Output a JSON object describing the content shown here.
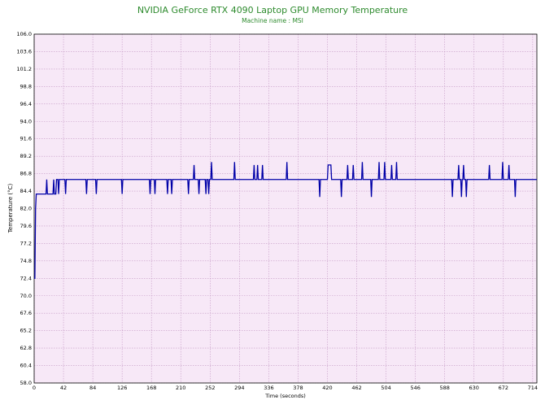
{
  "chart_data": {
    "type": "line",
    "title": "NVIDIA GeForce RTX 4090 Laptop GPU Memory Temperature",
    "subtitle": "Machine name : MSI",
    "x_label": "Time (seconds)",
    "y_label": "Temperature (°C)",
    "xlim": [
      0,
      720
    ],
    "xticks": [
      0,
      42,
      84,
      126,
      168,
      210,
      252,
      294,
      336,
      378,
      420,
      462,
      504,
      546,
      588,
      630,
      672,
      714
    ],
    "ylim": [
      58,
      106
    ],
    "yticks": [
      {
        "value": 58,
        "label": "58.0"
      },
      60.4,
      62.8,
      65.2,
      67.6,
      {
        "value": 70,
        "label": "70.0"
      },
      72.4,
      74.8,
      77.2,
      79.6,
      {
        "value": 82,
        "label": "82.0"
      },
      84.4,
      86.8,
      89.2,
      91.6,
      {
        "value": 94,
        "label": "94.0"
      },
      96.4,
      98.8,
      101.2,
      103.6,
      {
        "value": 106,
        "label": "106.0"
      }
    ],
    "grid": true,
    "series": [
      {
        "color": "#0000a8",
        "x": [
          0,
          1,
          2,
          3,
          4,
          17,
          18,
          19,
          27,
          28,
          29,
          31,
          32,
          34,
          35,
          36,
          44,
          45,
          46,
          74,
          75,
          76,
          88,
          89,
          90,
          125,
          126,
          127,
          165,
          166,
          167,
          172,
          173,
          174,
          190,
          191,
          192,
          196,
          197,
          198,
          220,
          221,
          222,
          228,
          229,
          230,
          235,
          236,
          237,
          245,
          246,
          247,
          249,
          250,
          251,
          253,
          254,
          255,
          286,
          287,
          288,
          314,
          315,
          316,
          319,
          320,
          321,
          326,
          327,
          328,
          361,
          362,
          363,
          408,
          409,
          410,
          420,
          421,
          425,
          426,
          439,
          440,
          441,
          448,
          449,
          450,
          456,
          457,
          458,
          469,
          470,
          471,
          482,
          483,
          484,
          493,
          494,
          495,
          501,
          502,
          503,
          511,
          512,
          513,
          518,
          519,
          520,
          598,
          599,
          600,
          607,
          608,
          609,
          611,
          612,
          613,
          614,
          615,
          616,
          618,
          619,
          620,
          651,
          652,
          653,
          670,
          671,
          672,
          679,
          680,
          681,
          688,
          689,
          690,
          720
        ],
        "values": [
          72.4,
          72.4,
          82,
          84,
          84,
          84,
          86,
          84,
          84,
          86,
          84,
          84,
          86,
          86,
          84,
          86,
          86,
          84,
          86,
          86,
          84,
          86,
          86,
          84,
          86,
          86,
          84,
          86,
          86,
          84,
          86,
          86,
          84,
          86,
          86,
          84,
          86,
          86,
          84,
          86,
          86,
          84,
          86,
          86,
          88,
          86,
          86,
          84,
          86,
          86,
          84,
          86,
          86,
          84,
          86,
          86,
          88.4,
          86,
          86,
          88.4,
          86,
          86,
          88,
          86,
          86,
          88,
          86,
          86,
          88,
          86,
          86,
          88.4,
          86,
          86,
          83.6,
          86,
          86,
          88,
          88,
          86,
          86,
          83.6,
          86,
          86,
          88,
          86,
          86,
          88,
          86,
          86,
          88.4,
          86,
          86,
          83.6,
          86,
          86,
          88.4,
          86,
          86,
          88.4,
          86,
          86,
          88,
          86,
          86,
          88.4,
          86,
          86,
          83.6,
          86,
          86,
          88,
          86,
          86,
          83.6,
          86,
          86,
          88,
          86,
          86,
          83.6,
          86,
          86,
          88,
          86,
          86,
          88.4,
          86,
          86,
          88,
          86,
          86,
          83.6,
          86,
          86
        ]
      }
    ]
  }
}
